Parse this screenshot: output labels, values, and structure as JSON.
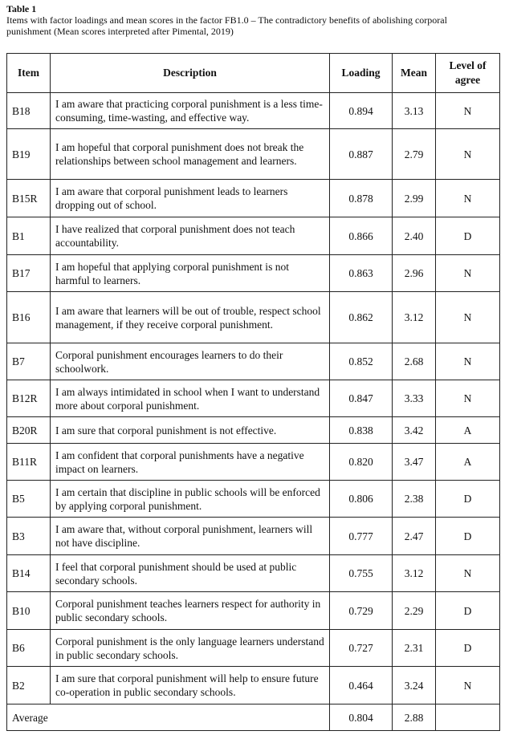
{
  "caption": {
    "label": "Table 1",
    "text": "Items with factor loadings and mean scores in the factor FB1.0 – The contradictory benefits of abolishing corporal punishment (Mean scores interpreted after Pimental, 2019)"
  },
  "table": {
    "headers": [
      "Item",
      "Description",
      "Loading",
      "Mean",
      "Level of agree"
    ],
    "rows": [
      [
        "B18",
        "I am aware that practicing corporal punishment is a less time-consuming, time-wasting, and effective way.",
        "0.894",
        "3.13",
        "N"
      ],
      [
        "B19",
        "I am hopeful that corporal punishment does not break the relationships between school management and learners.",
        "0.887",
        "2.79",
        "N"
      ],
      [
        "B15R",
        "I am aware that corporal punishment leads to learners dropping out of school.",
        "0.878",
        "2.99",
        "N"
      ],
      [
        "B1",
        "I have realized that corporal punishment does not teach accountability.",
        "0.866",
        "2.40",
        "D"
      ],
      [
        "B17",
        "I am hopeful that applying corporal punishment is not harmful to learners.",
        "0.863",
        "2.96",
        "N"
      ],
      [
        "B16",
        "I am aware that learners will be out of trouble, respect school management, if they receive corporal punishment.",
        "0.862",
        "3.12",
        "N"
      ],
      [
        "B7",
        "Corporal punishment encourages learners to do their schoolwork.",
        "0.852",
        "2.68",
        "N"
      ],
      [
        "B12R",
        "I am always intimidated in school when I want to understand more about corporal punishment.",
        "0.847",
        "3.33",
        "N"
      ],
      [
        "B20R",
        "I am sure that corporal punishment is not effective.",
        "0.838",
        "3.42",
        "A"
      ],
      [
        "B11R",
        "I am confident that corporal punishments have a negative impact on learners.",
        "0.820",
        "3.47",
        "A"
      ],
      [
        "B5",
        "I am certain that discipline in public schools will be enforced by applying corporal punishment.",
        "0.806",
        "2.38",
        "D"
      ],
      [
        "B3",
        "I am aware that, without corporal punishment, learners will not have discipline.",
        "0.777",
        "2.47",
        "D"
      ],
      [
        "B14",
        "I feel that corporal punishment should be used at public secondary schools.",
        "0.755",
        "3.12",
        "N"
      ],
      [
        "B10",
        "Corporal punishment teaches learners respect for authority in public secondary schools.",
        "0.729",
        "2.29",
        "D"
      ],
      [
        "B6",
        "Corporal punishment is the only language learners understand in public secondary schools.",
        "0.727",
        "2.31",
        "D"
      ],
      [
        "B2",
        "I am sure that corporal punishment will help to ensure future co-operation in public secondary schools.",
        "0.464",
        "3.24",
        "N"
      ]
    ],
    "average": [
      "Average",
      "0.804",
      "2.88"
    ]
  }
}
